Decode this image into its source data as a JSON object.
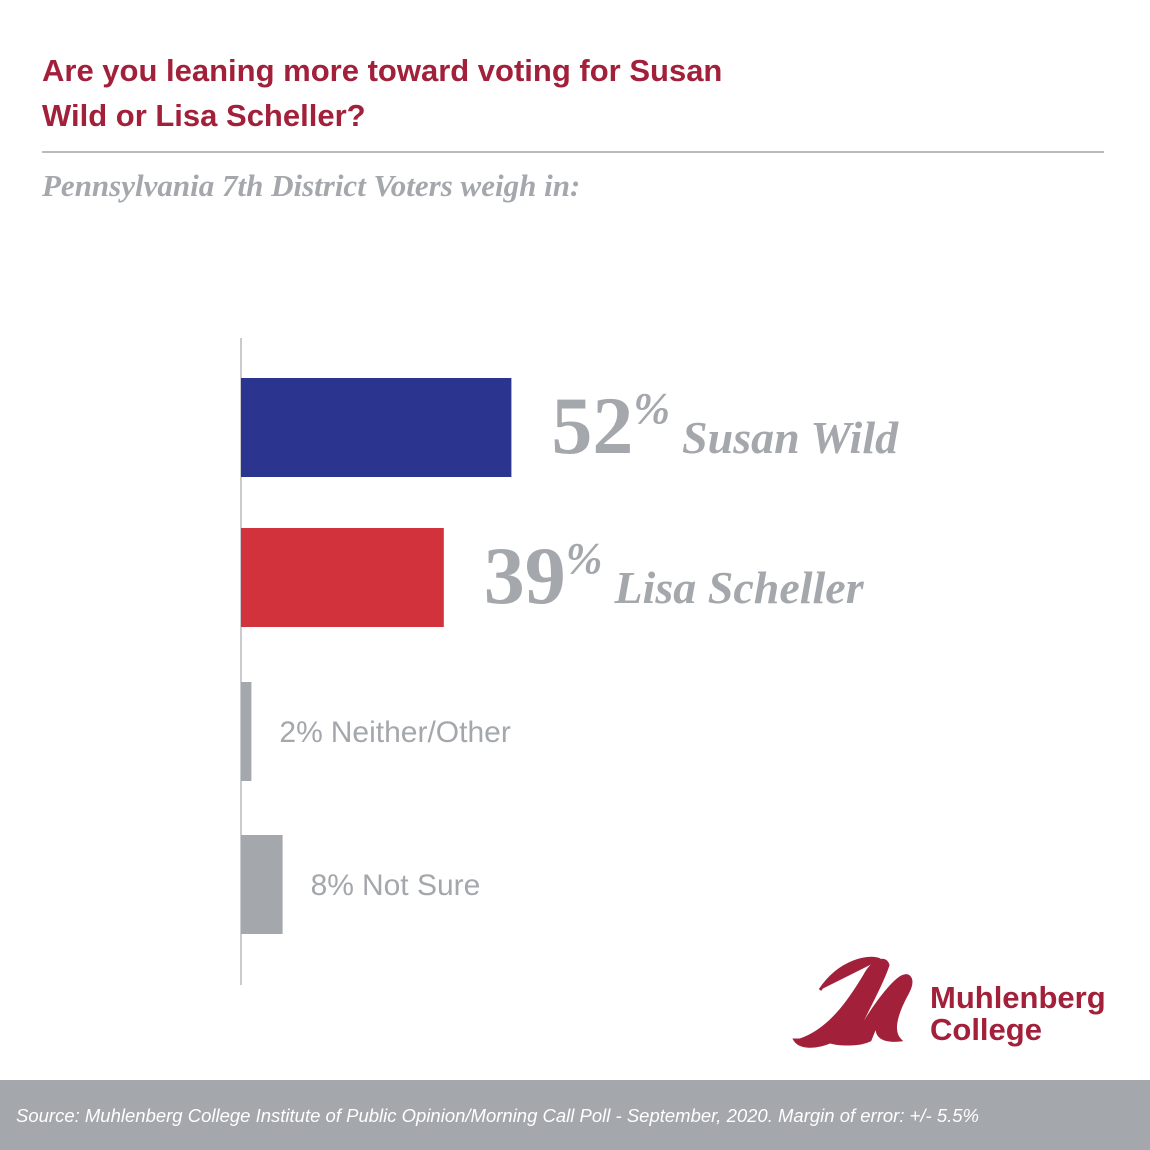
{
  "chart_data": {
    "type": "bar",
    "title": "Are you leaning more toward voting for Susan Wild or Lisa Scheller?",
    "subtitle": "Pennsylvania 7th District Voters weigh in:",
    "categories": [
      "Susan Wild",
      "Lisa Scheller",
      "Neither/Other",
      "Not Sure"
    ],
    "values": [
      52,
      39,
      2,
      8
    ],
    "value_labels": [
      "52%",
      "39%",
      "2%",
      "8%"
    ],
    "colors": [
      "#2b3590",
      "#d1323c",
      "#a4a7ab",
      "#a4a7ab"
    ],
    "orientation": "horizontal"
  },
  "logo": {
    "line1": "Muhlenberg",
    "line2": "College"
  },
  "source": "Source: Muhlenberg College Institute of Public Opinion/Morning Call Poll - September, 2020. Margin of error: +/- 5.5%"
}
